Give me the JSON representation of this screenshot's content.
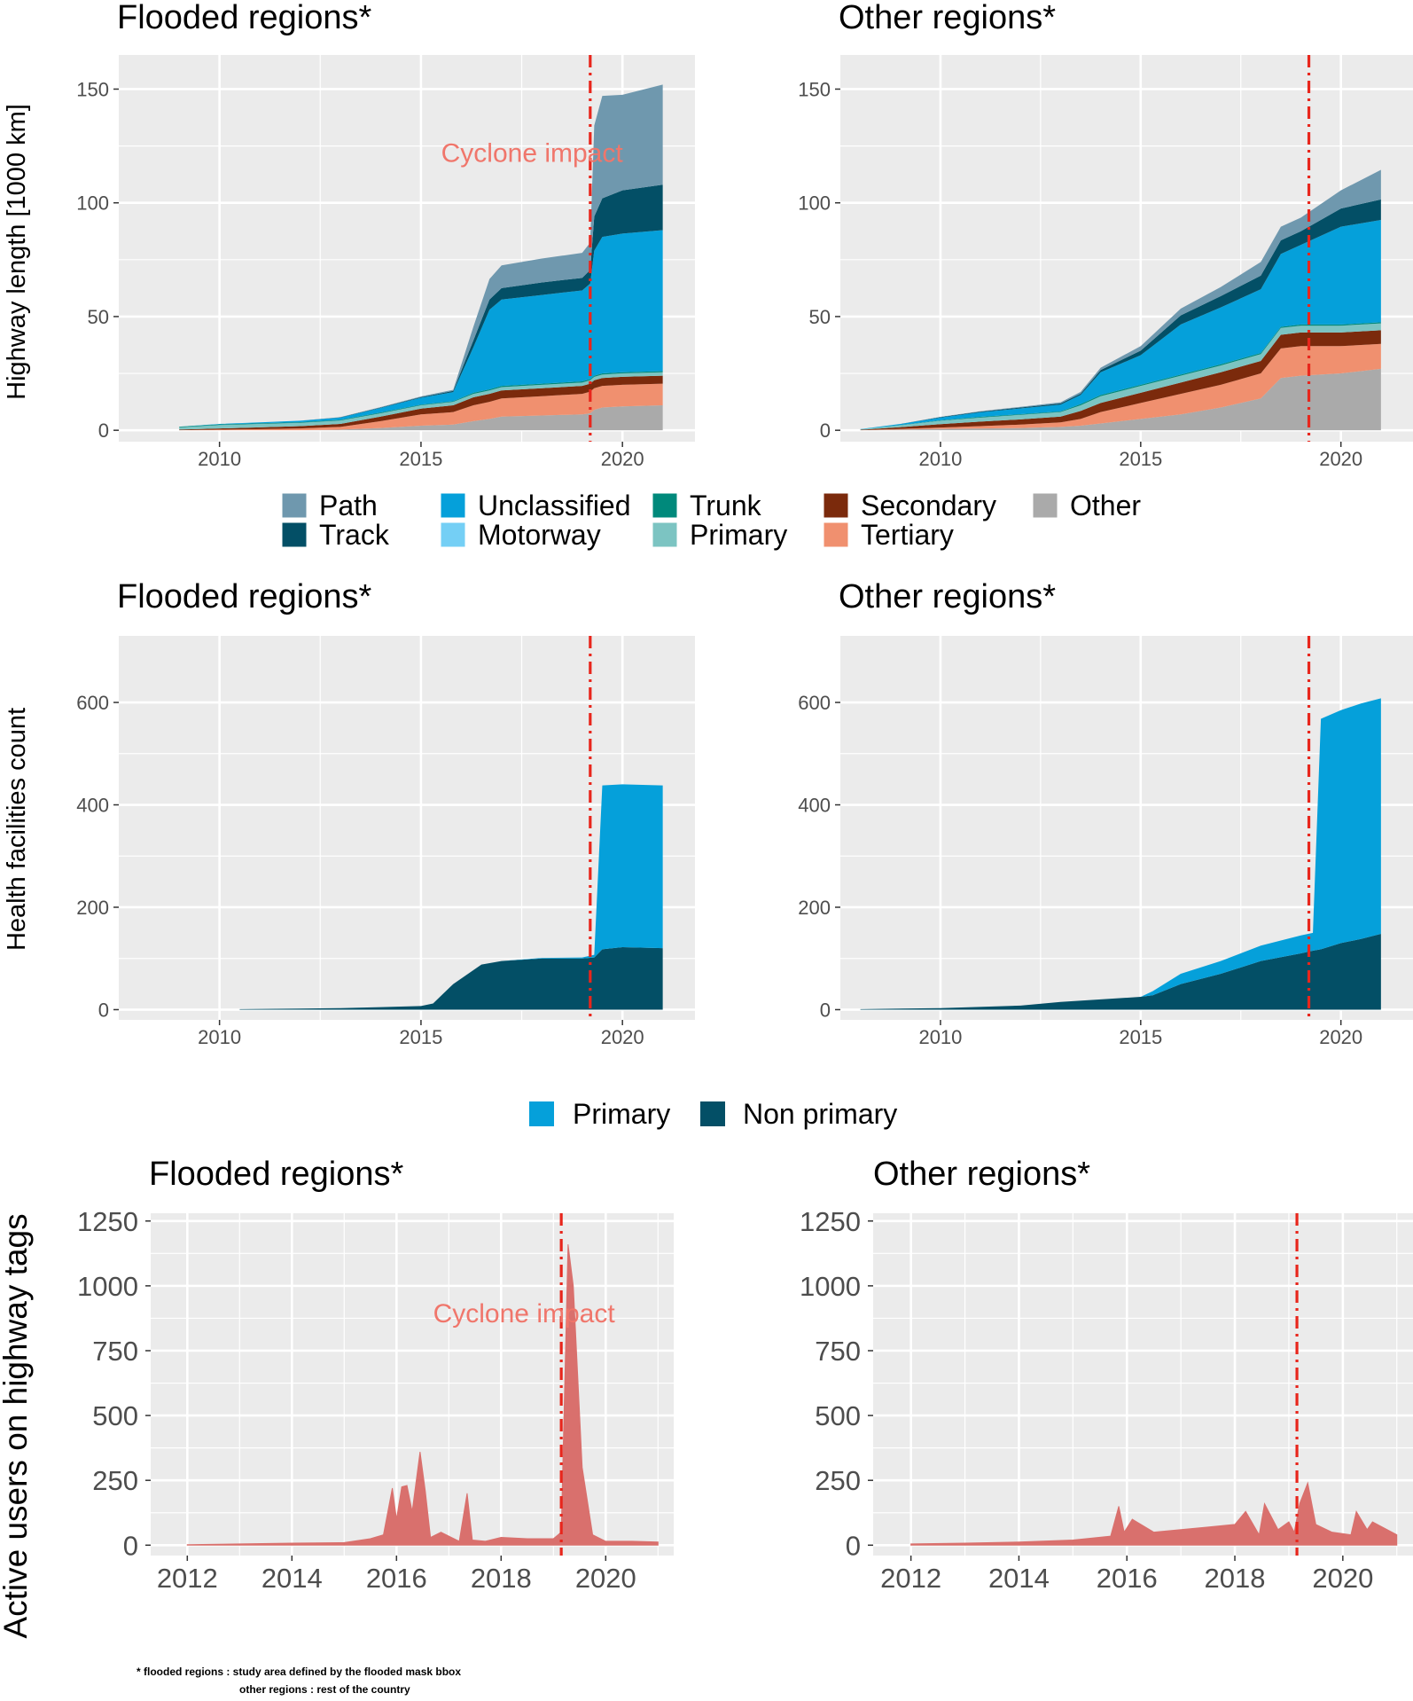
{
  "colors": {
    "panel_bg": "#ebebeb",
    "grid": "#ffffff",
    "cyclone_line": "#e8261c",
    "annotation": "#f0766b",
    "users_fill": "#d9706d",
    "Path": "#6f98ae",
    "Track": "#034f66",
    "Unclassified": "#05a0da",
    "Motorway": "#74cff5",
    "Trunk": "#00897b",
    "Primary": "#7cc4c2",
    "Secondary": "#7b2a0c",
    "Tertiary": "#f0906f",
    "Other": "#aaaaaa",
    "HF_Primary": "#05a0da",
    "HF_NonPrimary": "#034f66"
  },
  "highway_legend": {
    "items": [
      {
        "key": "Path",
        "label": "Path"
      },
      {
        "key": "Track",
        "label": "Track"
      },
      {
        "key": "Unclassified",
        "label": "Unclassified"
      },
      {
        "key": "Motorway",
        "label": "Motorway"
      },
      {
        "key": "Trunk",
        "label": "Trunk"
      },
      {
        "key": "Primary",
        "label": "Primary"
      },
      {
        "key": "Secondary",
        "label": "Secondary"
      },
      {
        "key": "Tertiary",
        "label": "Tertiary"
      },
      {
        "key": "Other",
        "label": "Other"
      }
    ]
  },
  "health_legend": {
    "items": [
      {
        "key": "HF_Primary",
        "label": "Primary"
      },
      {
        "key": "HF_NonPrimary",
        "label": "Non primary"
      }
    ]
  },
  "footnote": {
    "line1": "* flooded regions : study area defined by the flooded mask bbox",
    "line2": "other regions : rest of the country"
  },
  "chart_data": [
    {
      "id": "hw_flooded",
      "type": "area",
      "stacked": true,
      "title": "Flooded regions*",
      "ylabel": "Highway length [1000 km]",
      "xlim": [
        2007.5,
        2021.8
      ],
      "ylim": [
        -5,
        165
      ],
      "xticks": [
        2010,
        2015,
        2020
      ],
      "yticks": [
        0,
        50,
        100,
        150
      ],
      "vline": 2019.2,
      "annotation": {
        "text": "Cyclone impact",
        "x": 2015.5,
        "y": 118
      },
      "x": [
        2009,
        2010,
        2011,
        2012,
        2013,
        2014,
        2015,
        2015.8,
        2016.3,
        2016.7,
        2017,
        2018,
        2019,
        2019.2,
        2019.3,
        2019.5,
        2020,
        2021
      ],
      "series": [
        {
          "name": "Other",
          "values": [
            0,
            0,
            0,
            0,
            0.3,
            1,
            2,
            2.5,
            4,
            5,
            6,
            6.5,
            7,
            7.5,
            9,
            10,
            10.5,
            11
          ]
        },
        {
          "name": "Tertiary",
          "values": [
            0,
            0.3,
            0.5,
            0.8,
            1.2,
            3,
            5,
            5.5,
            7,
            7.5,
            8,
            8.5,
            9,
            9.5,
            9.5,
            9.5,
            9.5,
            9.5
          ]
        },
        {
          "name": "Secondary",
          "values": [
            0.3,
            0.5,
            0.8,
            1,
            1.3,
            2,
            2.5,
            3,
            3.5,
            3.5,
            3.5,
            3.5,
            3.5,
            3.5,
            3.5,
            3.5,
            3.5,
            3.5
          ]
        },
        {
          "name": "Primary",
          "values": [
            1,
            1.5,
            1.5,
            1.5,
            1.5,
            1.5,
            1.5,
            1.5,
            1.5,
            1.5,
            1.5,
            1.5,
            1.5,
            1.5,
            1.5,
            1.5,
            1.5,
            1.5
          ]
        },
        {
          "name": "Trunk",
          "values": [
            0.3,
            0.3,
            0.3,
            0.3,
            0.3,
            0.3,
            0.3,
            0.3,
            0.5,
            0.5,
            0.5,
            0.5,
            0.5,
            0.5,
            0.5,
            0.5,
            0.5,
            0.5
          ]
        },
        {
          "name": "Motorway",
          "values": [
            0,
            0,
            0,
            0,
            0,
            0,
            0,
            0,
            0,
            0,
            0,
            0,
            0,
            0,
            0,
            0,
            0,
            0
          ]
        },
        {
          "name": "Unclassified",
          "values": [
            0,
            0.2,
            0.4,
            0.6,
            1,
            2,
            3,
            4,
            20,
            35,
            38,
            39,
            40,
            42,
            55,
            60,
            61,
            62
          ]
        },
        {
          "name": "Track",
          "values": [
            0,
            0,
            0,
            0,
            0.1,
            0.2,
            0.3,
            0.5,
            3,
            4.5,
            5,
            5.5,
            5.5,
            6,
            15,
            17,
            19,
            20
          ]
        },
        {
          "name": "Path",
          "values": [
            0,
            0,
            0,
            0,
            0.1,
            0.2,
            0.3,
            0.5,
            6,
            9,
            10,
            10.5,
            11,
            12,
            40,
            45,
            42,
            44
          ]
        }
      ]
    },
    {
      "id": "hw_other",
      "type": "area",
      "stacked": true,
      "title": "Other regions*",
      "ylim": [
        -5,
        165
      ],
      "xlim": [
        2007.5,
        2021.8
      ],
      "xticks": [
        2010,
        2015,
        2020
      ],
      "yticks": [
        0,
        50,
        100,
        150
      ],
      "vline": 2019.2,
      "x": [
        2008,
        2009,
        2010,
        2011,
        2012,
        2013,
        2013.5,
        2014,
        2015,
        2016,
        2017,
        2018,
        2018.5,
        2019,
        2020,
        2021
      ],
      "series": [
        {
          "name": "Other",
          "values": [
            0,
            0.3,
            0.6,
            0.8,
            1,
            1.5,
            2,
            3,
            5,
            7,
            10,
            14,
            23,
            24,
            25,
            27
          ]
        },
        {
          "name": "Tertiary",
          "values": [
            0,
            0.3,
            0.6,
            1,
            1.5,
            2,
            3,
            5,
            7,
            9,
            10,
            11,
            13,
            13,
            12,
            11
          ]
        },
        {
          "name": "Secondary",
          "values": [
            0.2,
            0.8,
            1.5,
            2,
            2.3,
            2.5,
            3.5,
            4,
            4.5,
            5,
            5.5,
            5.5,
            6,
            6,
            6,
            6
          ]
        },
        {
          "name": "Primary",
          "values": [
            0.2,
            0.8,
            1.5,
            1.8,
            2,
            2,
            2.5,
            3,
            3,
            3,
            3,
            3,
            3,
            3,
            3,
            3
          ]
        },
        {
          "name": "Trunk",
          "values": [
            0,
            0.1,
            0.2,
            0.3,
            0.3,
            0.3,
            0.5,
            0.5,
            0.5,
            0.5,
            0.5,
            0.5,
            0.5,
            0.5,
            0.5,
            0.5
          ]
        },
        {
          "name": "Motorway",
          "values": [
            0,
            0,
            0,
            0,
            0,
            0,
            0,
            0,
            0,
            0,
            0,
            0,
            0,
            0,
            0,
            0
          ]
        },
        {
          "name": "Unclassified",
          "values": [
            0.1,
            0.5,
            1.2,
            2,
            2.5,
            3,
            4,
            10,
            13,
            22,
            25,
            28,
            32,
            35,
            43,
            45
          ]
        },
        {
          "name": "Track",
          "values": [
            0,
            0,
            0.2,
            0.3,
            0.4,
            0.5,
            0.6,
            1,
            2,
            4,
            5,
            6,
            6,
            6,
            8,
            9
          ]
        },
        {
          "name": "Path",
          "values": [
            0,
            0,
            0.1,
            0.2,
            0.3,
            0.5,
            0.8,
            1,
            2,
            3,
            4,
            6,
            6,
            6,
            8,
            13
          ]
        }
      ]
    },
    {
      "id": "hf_flooded",
      "type": "area",
      "stacked": true,
      "title": "Flooded regions*",
      "ylabel": "Health facilities count",
      "xlim": [
        2007.5,
        2021.8
      ],
      "ylim": [
        -20,
        730
      ],
      "xticks": [
        2010,
        2015,
        2020
      ],
      "yticks": [
        0,
        200,
        400,
        600
      ],
      "vline": 2019.2,
      "x": [
        2010.5,
        2012,
        2013,
        2014,
        2015,
        2015.3,
        2015.8,
        2016.5,
        2017,
        2018,
        2019,
        2019.3,
        2019.5,
        2020,
        2021
      ],
      "series": [
        {
          "name": "Non primary",
          "values": [
            1,
            2,
            3,
            5,
            7,
            12,
            50,
            88,
            95,
            100,
            100,
            102,
            118,
            122,
            120
          ]
        },
        {
          "name": "Primary",
          "values": [
            0,
            0,
            0,
            0,
            0,
            0,
            0,
            0,
            0,
            1,
            2,
            5,
            320,
            318,
            318
          ]
        }
      ]
    },
    {
      "id": "hf_other",
      "type": "area",
      "stacked": true,
      "title": "Other regions*",
      "xlim": [
        2007.5,
        2021.8
      ],
      "ylim": [
        -20,
        730
      ],
      "xticks": [
        2010,
        2015,
        2020
      ],
      "yticks": [
        0,
        200,
        400,
        600
      ],
      "vline": 2019.2,
      "x": [
        2008,
        2010,
        2012,
        2013,
        2015,
        2015.3,
        2016,
        2017,
        2018,
        2019,
        2019.3,
        2019.5,
        2020,
        2020.5,
        2021
      ],
      "series": [
        {
          "name": "Non primary",
          "values": [
            1,
            3,
            8,
            15,
            25,
            28,
            50,
            70,
            95,
            110,
            115,
            118,
            130,
            138,
            148
          ]
        },
        {
          "name": "Primary",
          "values": [
            0,
            0,
            0,
            0,
            0,
            8,
            20,
            25,
            30,
            35,
            35,
            450,
            455,
            460,
            460
          ]
        }
      ]
    },
    {
      "id": "users_flooded",
      "type": "area",
      "title": "Flooded regions*",
      "ylabel": "Active users on highway tags",
      "xlim": [
        2011.3,
        2021.3
      ],
      "ylim": [
        -40,
        1280
      ],
      "xticks": [
        2012,
        2014,
        2016,
        2018,
        2020
      ],
      "yticks": [
        0,
        250,
        500,
        750,
        1000,
        1250
      ],
      "vline": 2019.15,
      "annotation": {
        "text": "Cyclone impact",
        "x": 2016.7,
        "y": 860
      },
      "x": [
        2012,
        2013,
        2014,
        2015,
        2015.5,
        2015.75,
        2015.92,
        2016.0,
        2016.1,
        2016.2,
        2016.3,
        2016.45,
        2016.55,
        2016.65,
        2016.85,
        2017.2,
        2017.35,
        2017.45,
        2017.7,
        2018,
        2018.5,
        2019,
        2019.15,
        2019.28,
        2019.38,
        2019.55,
        2019.75,
        2020,
        2020.5,
        2021
      ],
      "values": [
        2,
        5,
        8,
        10,
        25,
        40,
        220,
        100,
        225,
        230,
        130,
        360,
        210,
        30,
        50,
        15,
        200,
        20,
        15,
        30,
        25,
        25,
        50,
        1160,
        1000,
        300,
        40,
        15,
        15,
        12
      ]
    },
    {
      "id": "users_other",
      "type": "area",
      "title": "Other regions*",
      "xlim": [
        2011.3,
        2021.3
      ],
      "ylim": [
        -40,
        1280
      ],
      "xticks": [
        2012,
        2014,
        2016,
        2018,
        2020
      ],
      "yticks": [
        0,
        250,
        500,
        750,
        1000,
        1250
      ],
      "vline": 2019.15,
      "x": [
        2012,
        2013,
        2014,
        2015,
        2015.7,
        2015.85,
        2015.95,
        2016.1,
        2016.5,
        2017,
        2017.5,
        2018,
        2018.2,
        2018.45,
        2018.55,
        2018.8,
        2019,
        2019.1,
        2019.2,
        2019.35,
        2019.5,
        2019.8,
        2020.15,
        2020.25,
        2020.45,
        2020.55,
        2021
      ],
      "values": [
        5,
        8,
        12,
        20,
        35,
        150,
        50,
        100,
        50,
        60,
        70,
        80,
        130,
        40,
        160,
        60,
        90,
        50,
        160,
        240,
        80,
        50,
        40,
        130,
        60,
        90,
        40
      ]
    }
  ]
}
